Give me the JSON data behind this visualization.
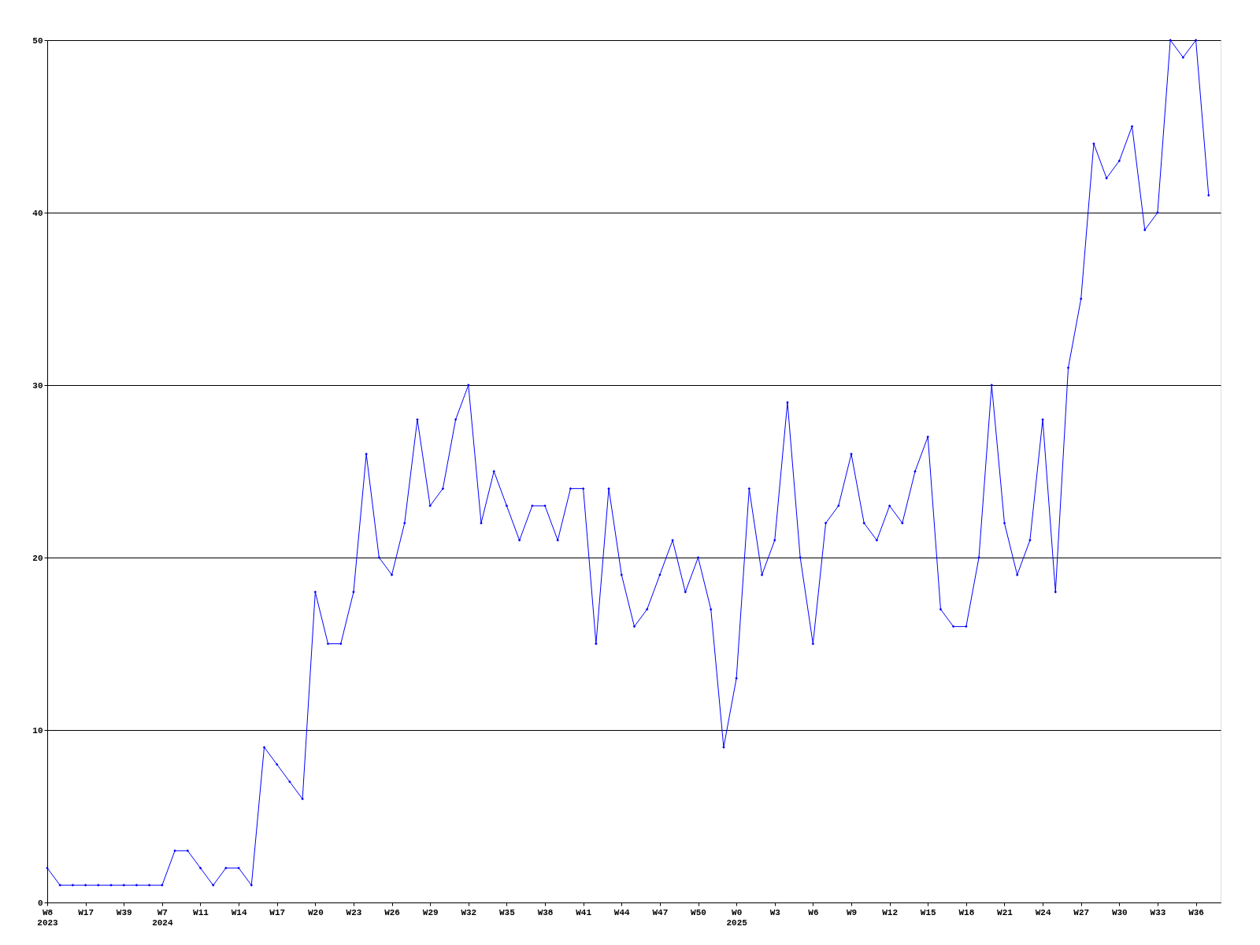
{
  "chart_data": {
    "type": "line",
    "color": "#0000ff",
    "marker": "diamond",
    "grid": "y",
    "categories": [
      "W8\n2023",
      null,
      null,
      "W17",
      null,
      null,
      "W39",
      null,
      null,
      "W7\n2024",
      null,
      null,
      "W11",
      null,
      null,
      "W14",
      null,
      null,
      "W17",
      null,
      null,
      "W20",
      null,
      null,
      "W23",
      null,
      null,
      "W26",
      null,
      null,
      "W29",
      null,
      null,
      "W32",
      null,
      null,
      "W35",
      null,
      null,
      "W38",
      null,
      null,
      "W41",
      null,
      null,
      "W44",
      null,
      null,
      "W47",
      null,
      null,
      "W50",
      null,
      null,
      "W0\n2025",
      null,
      null,
      "W3",
      null,
      null,
      "W6",
      null,
      null,
      "W9",
      null,
      null,
      "W12",
      null,
      null,
      "W15",
      null,
      null,
      "W18",
      null,
      null,
      "W21",
      null,
      null,
      "W24",
      null,
      null,
      "W27",
      null,
      null,
      "W30",
      null,
      null,
      "W33",
      null,
      null,
      "W36",
      null
    ],
    "values": [
      2,
      1,
      1,
      1,
      1,
      1,
      1,
      1,
      1,
      1,
      3,
      3,
      2,
      1,
      2,
      2,
      1,
      9,
      8,
      7,
      6,
      18,
      15,
      15,
      18,
      26,
      20,
      19,
      22,
      28,
      23,
      24,
      28,
      30,
      22,
      25,
      23,
      21,
      23,
      23,
      21,
      24,
      24,
      15,
      24,
      19,
      16,
      17,
      19,
      21,
      18,
      20,
      17,
      9,
      13,
      24,
      19,
      21,
      29,
      20,
      15,
      22,
      23,
      26,
      22,
      21,
      23,
      22,
      25,
      27,
      17,
      16,
      16,
      20,
      30,
      22,
      19,
      21,
      28,
      18,
      31,
      35,
      44,
      42,
      43,
      45,
      39,
      40,
      50,
      49,
      50,
      41
    ],
    "ylim": [
      0,
      50
    ],
    "yticks": [
      0,
      10,
      20,
      30,
      40,
      50
    ]
  }
}
